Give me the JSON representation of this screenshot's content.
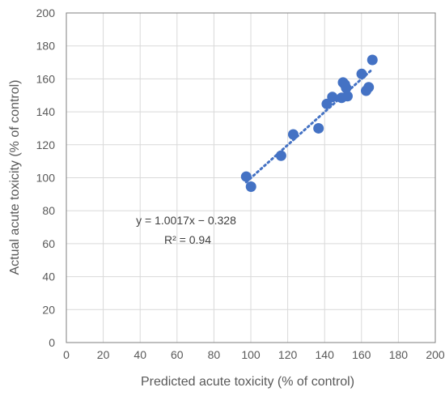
{
  "chart_data": {
    "type": "scatter",
    "xlabel": "Predicted acute toxicity (% of control)",
    "ylabel": "Actual acute toxicity (% of control)",
    "xlim": [
      0,
      200
    ],
    "ylim": [
      0,
      200
    ],
    "x_ticks": [
      "0",
      "20",
      "40",
      "60",
      "80",
      "100",
      "120",
      "140",
      "160",
      "180",
      "200"
    ],
    "y_ticks": [
      "0",
      "20",
      "40",
      "60",
      "80",
      "100",
      "120",
      "140",
      "160",
      "180",
      "200"
    ],
    "grid": true,
    "marker_color": "#4472C4",
    "series": [
      {
        "points": [
          [
            97.5,
            100.7
          ],
          [
            100.1,
            94.6
          ],
          [
            116.4,
            113.4
          ],
          [
            123.0,
            126.3
          ],
          [
            136.7,
            130.0
          ],
          [
            141.2,
            144.8
          ],
          [
            144.2,
            149.0
          ],
          [
            149.2,
            148.5
          ],
          [
            150.0,
            157.8
          ],
          [
            151.0,
            156.6
          ],
          [
            151.7,
            154.5
          ],
          [
            152.4,
            149.5
          ],
          [
            160.1,
            163.0
          ],
          [
            162.5,
            152.8
          ],
          [
            163.9,
            154.9
          ],
          [
            165.9,
            171.5
          ]
        ]
      }
    ],
    "trendline": {
      "slope": 1.0017,
      "intercept": -0.328,
      "x_range": [
        97.5,
        165.9
      ],
      "style": "dotted"
    },
    "annotations": {
      "equation": "y = 1.0017x − 0.328",
      "r_squared": "R² = 0.94"
    }
  }
}
